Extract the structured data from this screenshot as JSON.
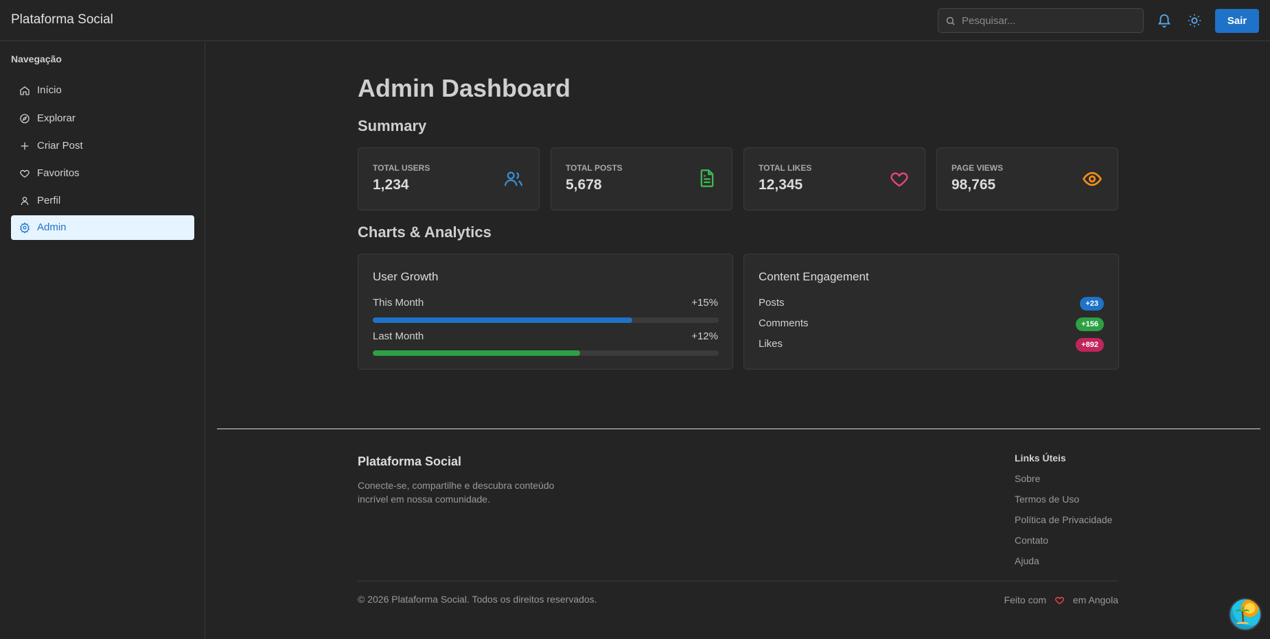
{
  "header": {
    "brand": "Plataforma Social",
    "search_placeholder": "Pesquisar...",
    "logout_label": "Sair",
    "icons": [
      "search-icon",
      "bell-icon",
      "sun-icon"
    ]
  },
  "sidebar": {
    "title": "Navegação",
    "items": [
      {
        "label": "Início",
        "icon": "home-icon"
      },
      {
        "label": "Explorar",
        "icon": "compass-icon"
      },
      {
        "label": "Criar Post",
        "icon": "plus-icon"
      },
      {
        "label": "Favoritos",
        "icon": "heart-icon"
      },
      {
        "label": "Perfil",
        "icon": "user-icon"
      },
      {
        "label": "Admin",
        "icon": "gear-icon",
        "active": true
      }
    ]
  },
  "main": {
    "title": "Admin Dashboard",
    "summary_title": "Summary",
    "stats": [
      {
        "label": "Total Users",
        "value": "1,234",
        "icon": "users-icon",
        "color": "#3b8fd9"
      },
      {
        "label": "Total Posts",
        "value": "5,678",
        "icon": "document-icon",
        "color": "#3fb950"
      },
      {
        "label": "Total Likes",
        "value": "12,345",
        "icon": "heart-icon",
        "color": "#e2457a"
      },
      {
        "label": "Page Views",
        "value": "98,765",
        "icon": "eye-icon",
        "color": "#f08c1a"
      }
    ],
    "charts_title": "Charts & Analytics",
    "user_growth": {
      "title": "User Growth",
      "rows": [
        {
          "label": "This Month",
          "value": "+15%",
          "progress": 0.75,
          "color": "#1e73c8"
        },
        {
          "label": "Last Month",
          "value": "+12%",
          "progress": 0.6,
          "color": "#2ea043"
        }
      ]
    },
    "engagement": {
      "title": "Content Engagement",
      "rows": [
        {
          "label": "Posts",
          "badge": "+23",
          "color": "#1e73c8"
        },
        {
          "label": "Comments",
          "badge": "+156",
          "color": "#2ea043"
        },
        {
          "label": "Likes",
          "badge": "+892",
          "color": "#c2255c"
        }
      ]
    }
  },
  "footer": {
    "brand": "Plataforma Social",
    "description": "Conecte-se, compartilhe e descubra conteúdo incrível em nossa comunidade.",
    "links_title": "Links Úteis",
    "links": [
      "Sobre",
      "Termos de Uso",
      "Política de Privacidade",
      "Contato",
      "Ajuda"
    ],
    "copyright": "© 2026 Plataforma Social. Todos os direitos reservados.",
    "made_prefix": "Feito com",
    "made_suffix": "em Angola"
  }
}
